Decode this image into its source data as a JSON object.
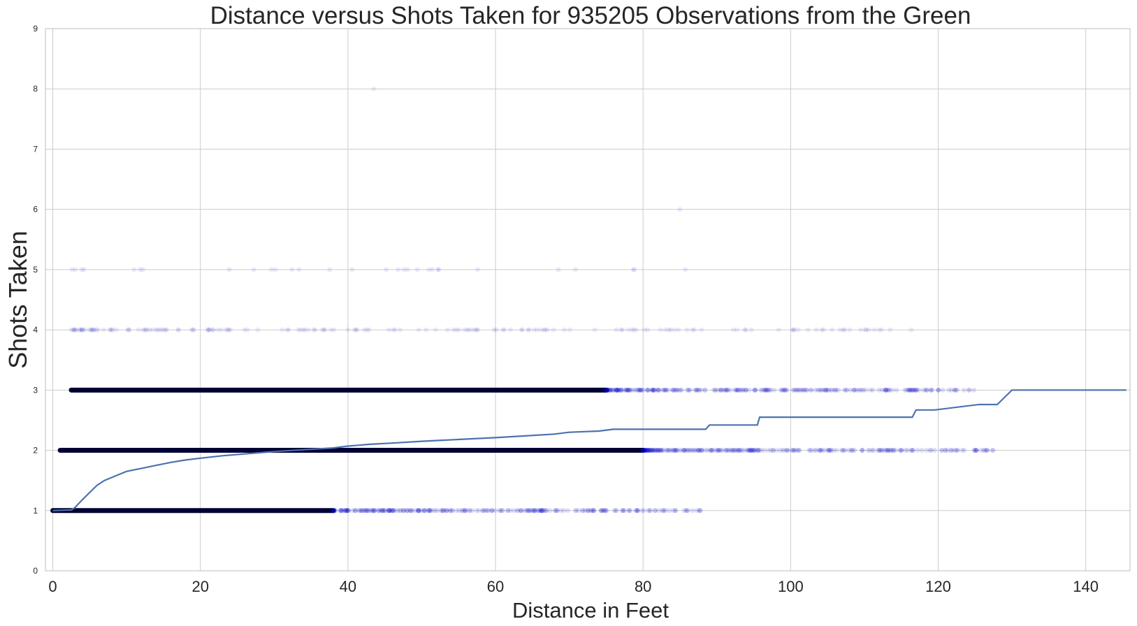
{
  "chart_data": {
    "type": "scatter",
    "title": "Distance versus Shots Taken for 935205 Observations from the Green",
    "xlabel": "Distance in Feet",
    "ylabel": "Shots Taken",
    "xlim": [
      -1,
      146
    ],
    "ylim": [
      0,
      9
    ],
    "xticks": [
      "0",
      "20",
      "40",
      "60",
      "80",
      "100",
      "120",
      "140"
    ],
    "yticks": [
      "0",
      "1",
      "2",
      "3",
      "4",
      "5",
      "6",
      "7",
      "8",
      "9"
    ],
    "grid": true,
    "legend": "none",
    "colors": {
      "scatter": "#0000cc",
      "line": "#4c72b0",
      "grid": "#cccccc",
      "frame": "#bdbdbd"
    },
    "scatter_bands": [
      {
        "y": 1,
        "dense_to": 38,
        "sparse_to": 88
      },
      {
        "y": 2,
        "dense_to": 80,
        "sparse_to": 128
      },
      {
        "y": 3,
        "dense_to": 75,
        "sparse_to": 125
      },
      {
        "y": 4,
        "dense_to": 0,
        "sparse_to": 117
      },
      {
        "y": 5,
        "dense_to": 0,
        "sparse_to": 89
      }
    ],
    "outliers": [
      {
        "x": 43.5,
        "y": 8
      },
      {
        "x": 85,
        "y": 6
      }
    ],
    "series": [
      {
        "type": "line",
        "x": [
          0,
          2.5,
          3,
          4,
          5,
          6,
          7,
          8,
          9,
          10,
          12,
          14,
          16,
          18,
          20,
          23,
          26,
          30,
          34,
          38,
          40,
          43,
          46,
          50,
          55,
          60,
          64,
          68,
          70,
          74,
          76,
          88.5,
          89,
          95.5,
          95.8,
          116.5,
          117,
          119.5,
          125.5,
          128,
          130,
          145.5
        ],
        "y": [
          1.0,
          1.01,
          1.05,
          1.18,
          1.3,
          1.42,
          1.5,
          1.55,
          1.6,
          1.65,
          1.7,
          1.75,
          1.8,
          1.84,
          1.87,
          1.91,
          1.94,
          1.98,
          2.01,
          2.04,
          2.07,
          2.1,
          2.12,
          2.15,
          2.18,
          2.21,
          2.24,
          2.27,
          2.3,
          2.32,
          2.35,
          2.35,
          2.42,
          2.42,
          2.55,
          2.55,
          2.67,
          2.67,
          2.76,
          2.76,
          3.0,
          3.0
        ]
      }
    ]
  }
}
